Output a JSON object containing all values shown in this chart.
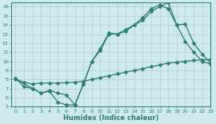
{
  "line1_x": [
    0,
    1,
    2,
    3,
    4,
    5,
    6,
    7,
    8,
    9,
    10,
    11,
    12,
    13,
    14,
    15,
    16,
    17,
    18,
    19,
    20,
    21,
    22,
    23
  ],
  "line1_y": [
    8.1,
    7.2,
    7.0,
    6.5,
    6.7,
    5.5,
    5.2,
    5.2,
    7.5,
    10.0,
    11.2,
    13.0,
    13.0,
    13.3,
    14.0,
    14.5,
    15.5,
    16.0,
    16.5,
    14.0,
    12.2,
    11.0,
    10.0,
    9.7
  ],
  "line2_x": [
    0,
    1,
    2,
    3,
    4,
    5,
    6,
    7,
    8,
    9,
    10,
    11,
    12,
    13,
    14,
    15,
    16,
    17,
    18,
    19,
    20,
    21,
    22,
    23
  ],
  "line2_y": [
    8.0,
    7.7,
    7.5,
    7.6,
    7.6,
    7.6,
    7.65,
    7.7,
    7.8,
    8.0,
    8.2,
    8.4,
    8.6,
    8.8,
    9.0,
    9.2,
    9.4,
    9.6,
    9.8,
    9.9,
    10.0,
    10.1,
    10.15,
    10.2
  ],
  "line3_x": [
    0,
    2,
    3,
    4,
    5,
    6,
    7,
    8,
    9,
    10,
    11,
    12,
    13,
    14,
    15,
    16,
    17,
    18,
    19,
    20,
    21,
    22,
    23
  ],
  "line3_y": [
    8.1,
    7.0,
    6.5,
    6.8,
    6.5,
    6.3,
    5.2,
    7.5,
    10.0,
    11.4,
    13.1,
    13.0,
    13.5,
    14.0,
    14.8,
    15.8,
    16.2,
    15.8,
    14.0,
    14.1,
    12.0,
    10.8,
    9.8
  ],
  "color": "#2e7d6e",
  "bg_color": "#ceeaea",
  "grid_color": "#b0d0d0",
  "xlabel": "Humidex (Indice chaleur)",
  "xlim": [
    -0.5,
    23
  ],
  "ylim": [
    5,
    16.5
  ],
  "yticks": [
    5,
    6,
    7,
    8,
    9,
    10,
    11,
    12,
    13,
    14,
    15,
    16
  ],
  "xticks": [
    0,
    1,
    2,
    3,
    4,
    5,
    6,
    7,
    8,
    9,
    10,
    11,
    12,
    13,
    14,
    15,
    16,
    17,
    18,
    19,
    20,
    21,
    22,
    23
  ],
  "markersize": 2.5,
  "linewidth": 0.9
}
